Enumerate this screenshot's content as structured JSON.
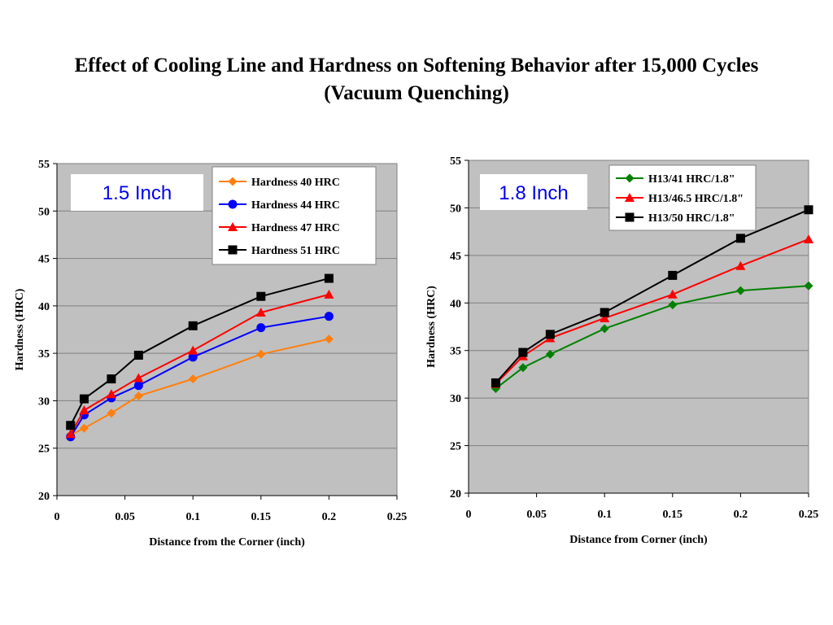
{
  "title": {
    "line1": "Effect of Cooling Line and Hardness on Softening Behavior after 15,000 Cycles",
    "line2": "(Vacuum Quenching)"
  },
  "chart_data": [
    {
      "type": "line",
      "inset_label": "1.5  Inch",
      "xlabel": "Distance from the Corner (inch)",
      "ylabel": "Hardness (HRC)",
      "xlim": [
        0,
        0.25
      ],
      "ylim": [
        20,
        55
      ],
      "xticks": [
        0,
        0.05,
        0.1,
        0.15,
        0.2,
        0.25
      ],
      "xtick_labels": [
        "0",
        "0.05",
        "0.1",
        "0.15",
        "0.2",
        "0.25"
      ],
      "yticks": [
        20,
        25,
        30,
        35,
        40,
        45,
        50,
        55
      ],
      "grid": "horizontal",
      "legend_position": "top-right",
      "x": [
        0.01,
        0.02,
        0.04,
        0.06,
        0.1,
        0.15,
        0.2
      ],
      "series": [
        {
          "name": "Hardness 40 HRC",
          "color": "#ff7f0e",
          "marker": "diamond",
          "values": [
            26.4,
            27.1,
            28.7,
            30.5,
            32.3,
            34.9,
            36.5
          ]
        },
        {
          "name": "Hardness 44 HRC",
          "color": "#0000ff",
          "marker": "circle",
          "values": [
            26.2,
            28.5,
            30.3,
            31.6,
            34.6,
            37.7,
            38.9
          ]
        },
        {
          "name": "Hardness 47 HRC",
          "color": "#ff0000",
          "marker": "triangle",
          "values": [
            26.5,
            29.0,
            30.7,
            32.4,
            35.3,
            39.3,
            41.2
          ]
        },
        {
          "name": "Hardness 51 HRC",
          "color": "#000000",
          "marker": "square",
          "values": [
            27.4,
            30.2,
            32.3,
            34.8,
            37.9,
            41.0,
            42.9
          ]
        }
      ]
    },
    {
      "type": "line",
      "inset_label": "1.8  Inch",
      "xlabel": "Distance from Corner (inch)",
      "ylabel": "Hardness (HRC)",
      "xlim": [
        0,
        0.25
      ],
      "ylim": [
        20,
        55
      ],
      "xticks": [
        0,
        0.05,
        0.1,
        0.15,
        0.2,
        0.25
      ],
      "xtick_labels": [
        "0",
        "0.05",
        "0.1",
        "0.15",
        "0.2",
        "0.25"
      ],
      "yticks": [
        20,
        25,
        30,
        35,
        40,
        45,
        50,
        55
      ],
      "grid": "horizontal",
      "legend_position": "top-right",
      "x": [
        0.02,
        0.04,
        0.06,
        0.1,
        0.15,
        0.2,
        0.25
      ],
      "series": [
        {
          "name": "H13/41 HRC/1.8\"",
          "color": "#008000",
          "marker": "diamond",
          "values": [
            31.0,
            33.2,
            34.6,
            37.3,
            39.8,
            41.3,
            41.8
          ]
        },
        {
          "name": "H13/46.5 HRC/1.8\"",
          "color": "#ff0000",
          "marker": "triangle",
          "values": [
            31.5,
            34.4,
            36.3,
            38.4,
            40.9,
            43.9,
            46.7
          ]
        },
        {
          "name": "H13/50 HRC/1.8\"",
          "color": "#000000",
          "marker": "square",
          "values": [
            31.6,
            34.8,
            36.7,
            39.0,
            42.9,
            46.8,
            49.8
          ]
        }
      ]
    }
  ]
}
